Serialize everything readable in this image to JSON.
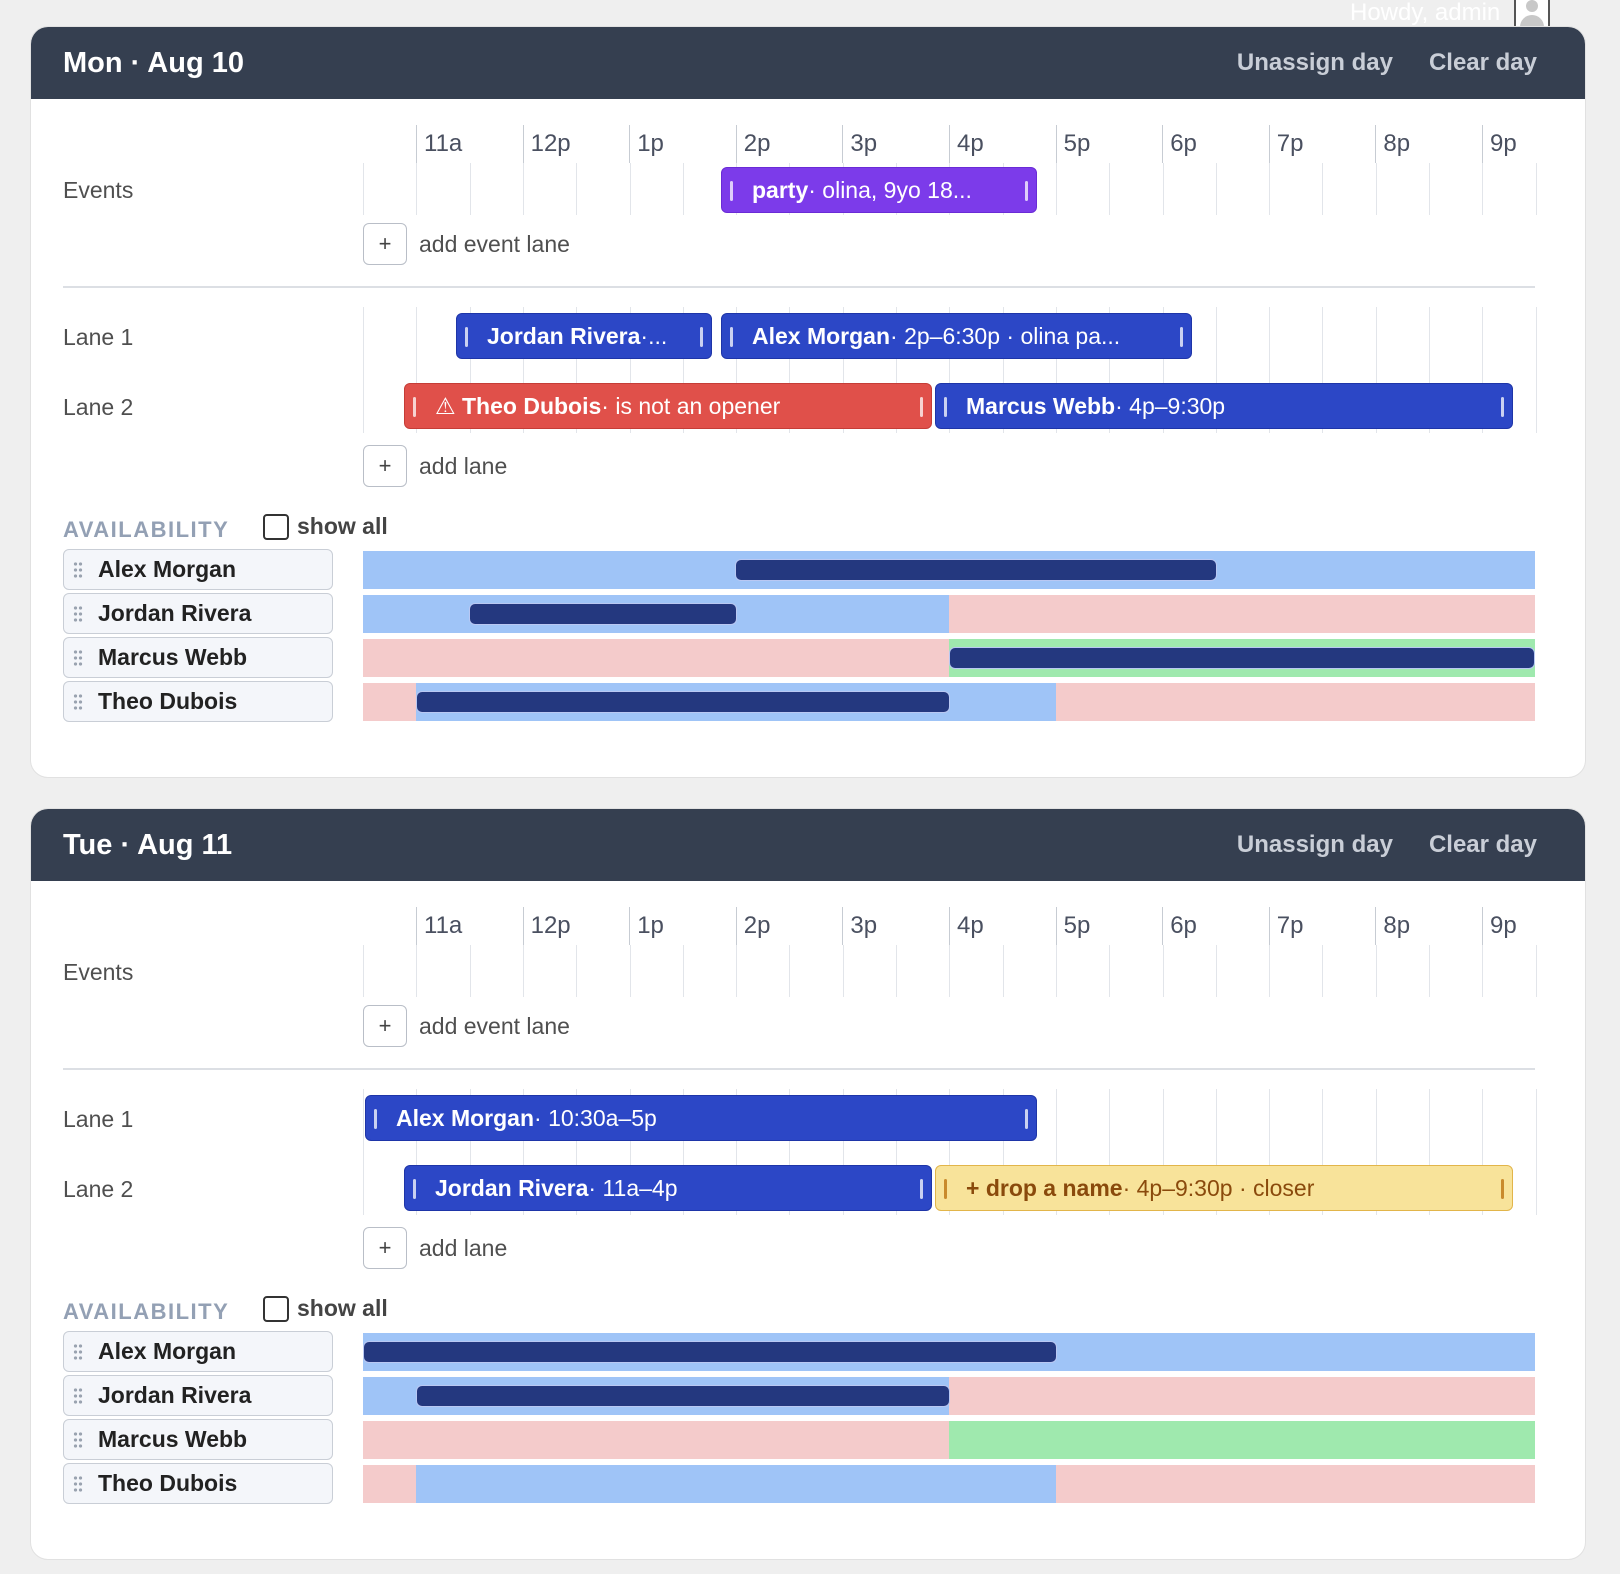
{
  "header": {
    "greeting": "Howdy, admin",
    "avatar_icon": "user-avatar-icon"
  },
  "hours": [
    "11a",
    "12p",
    "1p",
    "2p",
    "3p",
    "4p",
    "5p",
    "6p",
    "7p",
    "8p",
    "9p"
  ],
  "labels": {
    "events": "Events",
    "add_event_lane": "add event lane",
    "add_lane": "add lane",
    "availability": "AVAILABILITY",
    "show_all": "show all",
    "plus": "+",
    "lane_1": "Lane 1",
    "lane_2": "Lane 2"
  },
  "colors": {
    "header": "#353f50",
    "assigned": "#2c47c6",
    "event": "#7c3bea",
    "warning": "#e0504a",
    "open_shift": "#f8e39a",
    "available": "#9fc4f7",
    "unavailable": "#f4cbcb",
    "preferred": "#9fe9ae"
  },
  "days": [
    {
      "title": "Mon · Aug 10",
      "unassign_label": "Unassign day",
      "clear_label": "Clear day",
      "event": {
        "name": "party",
        "detail": " · olina, 9yo 18..."
      },
      "lane1": [
        {
          "name": "Jordan Rivera",
          "detail": " ·..."
        },
        {
          "name": "Alex Morgan",
          "detail": " · 2p–6:30p · olina pa..."
        }
      ],
      "lane2": [
        {
          "name": "⚠ Theo Dubois",
          "detail": " · is not an opener"
        },
        {
          "name": "Marcus Webb",
          "detail": " · 4p–9:30p"
        }
      ],
      "people": [
        "Alex Morgan",
        "Jordan Rivera",
        "Marcus Webb",
        "Theo Dubois"
      ]
    },
    {
      "title": "Tue · Aug 11",
      "unassign_label": "Unassign day",
      "clear_label": "Clear day",
      "lane1": [
        {
          "name": "Alex Morgan",
          "detail": " · 10:30a–5p"
        }
      ],
      "lane2": [
        {
          "name": "Jordan Rivera",
          "detail": " · 11a–4p"
        },
        {
          "name": "+ drop a name",
          "detail": " · 4p–9:30p · closer"
        }
      ],
      "people": [
        "Alex Morgan",
        "Jordan Rivera",
        "Marcus Webb",
        "Theo Dubois"
      ]
    }
  ]
}
